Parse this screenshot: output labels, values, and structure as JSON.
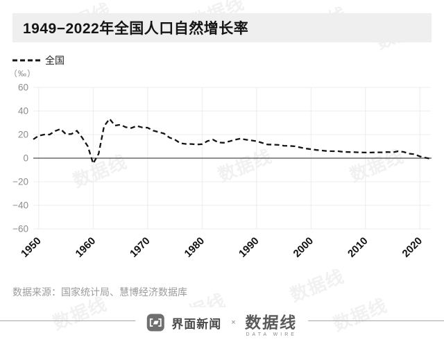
{
  "header": {
    "title": "1949−2022年全国人口自然增长率"
  },
  "legend": {
    "label": "全国"
  },
  "axis": {
    "unit": "（‰）"
  },
  "source": {
    "text": "数据来源：国家统计局、慧博经济数据库"
  },
  "footer": {
    "jiemian_label": "界面新闻",
    "cross_label": "×",
    "datawire_label": "数据线",
    "datawire_sub_label": "DATA WIRE"
  },
  "watermark": {
    "text": "数据线"
  },
  "colors": {
    "title_bar_bg": "#efefef",
    "line": "#141414",
    "zero_line": "#4d4d4d",
    "grid": "#ececec",
    "y_tick_label": "#8c8c8c",
    "x_tick_label": "#111111",
    "source_text": "#9b9b9b",
    "divider": "#a6a6a6"
  },
  "chart_data": {
    "type": "line",
    "title": "1949−2022年全国人口自然增长率",
    "series_name": "全国",
    "ylabel": "（‰）",
    "xlabel": "",
    "line_style": "dashed",
    "line_color": "#141414",
    "grid": true,
    "legend_position": "top-left",
    "ylim": [
      -60,
      60
    ],
    "yticks": [
      {
        "v": 60,
        "label": "60"
      },
      {
        "v": 40,
        "label": "40"
      },
      {
        "v": 20,
        "label": "20"
      },
      {
        "v": 0,
        "label": "0"
      },
      {
        "v": -20,
        "label": "−20"
      },
      {
        "v": -40,
        "label": "−40"
      },
      {
        "v": -60,
        "label": "−60"
      }
    ],
    "xticks": [
      {
        "year": 1950,
        "label": "1950"
      },
      {
        "year": 1960,
        "label": "1960"
      },
      {
        "year": 1970,
        "label": "1970"
      },
      {
        "year": 1980,
        "label": "1980"
      },
      {
        "year": 1990,
        "label": "1990"
      },
      {
        "year": 2000,
        "label": "2000"
      },
      {
        "year": 2010,
        "label": "2010"
      },
      {
        "year": 2020,
        "label": "2020"
      }
    ],
    "x": [
      1949,
      1950,
      1951,
      1952,
      1953,
      1954,
      1955,
      1956,
      1957,
      1958,
      1959,
      1960,
      1961,
      1962,
      1963,
      1964,
      1965,
      1966,
      1967,
      1968,
      1969,
      1970,
      1971,
      1972,
      1973,
      1974,
      1975,
      1976,
      1977,
      1978,
      1979,
      1980,
      1981,
      1982,
      1983,
      1984,
      1985,
      1986,
      1987,
      1988,
      1989,
      1990,
      1991,
      1992,
      1993,
      1994,
      1995,
      1996,
      1997,
      1998,
      1999,
      2000,
      2001,
      2002,
      2003,
      2004,
      2005,
      2006,
      2007,
      2008,
      2009,
      2010,
      2011,
      2012,
      2013,
      2014,
      2015,
      2016,
      2017,
      2018,
      2019,
      2020,
      2021,
      2022
    ],
    "values": [
      16.0,
      19.0,
      20.0,
      20.0,
      23.0,
      24.79,
      20.32,
      20.5,
      23.23,
      17.24,
      10.19,
      -4.57,
      3.78,
      26.99,
      33.33,
      27.64,
      28.38,
      26.22,
      25.53,
      27.38,
      26.08,
      25.83,
      23.33,
      22.16,
      20.89,
      17.48,
      15.69,
      12.66,
      12.06,
      12.0,
      11.61,
      11.87,
      14.55,
      15.68,
      13.29,
      13.08,
      14.26,
      15.57,
      16.61,
      15.73,
      15.04,
      14.39,
      12.98,
      11.6,
      11.45,
      11.21,
      10.55,
      10.42,
      10.06,
      9.14,
      8.18,
      7.58,
      6.95,
      6.45,
      6.01,
      5.87,
      5.89,
      5.28,
      5.17,
      5.08,
      4.87,
      4.79,
      4.79,
      4.95,
      4.92,
      5.21,
      4.96,
      5.86,
      5.32,
      3.81,
      3.34,
      1.45,
      0.34,
      -0.6
    ]
  }
}
